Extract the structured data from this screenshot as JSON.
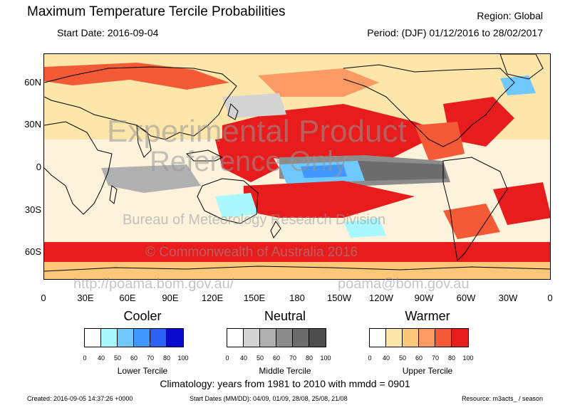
{
  "header": {
    "title": "Maximum Temperature Tercile Probabilities",
    "region": "Region: Global",
    "start_date": "Start Date: 2016-09-04",
    "period": "Period: (DJF) 01/12/2016 to 28/02/2017"
  },
  "axes": {
    "lat_labels": [
      "60N",
      "30N",
      "0",
      "30S",
      "60S"
    ],
    "lon_labels": [
      "0",
      "30E",
      "60E",
      "90E",
      "120E",
      "150E",
      "180",
      "150W",
      "120W",
      "90W",
      "60W",
      "30W",
      "0"
    ]
  },
  "watermarks": {
    "experimental": "Experimental Product",
    "reference": "Reference Only",
    "bureau": "Bureau of Meteorology Research Division",
    "copyright": "© Commonwealth of Australia 2016",
    "url": "http://poama.bom.gov.au/",
    "email": "poama@bom.gov.au"
  },
  "legend": {
    "groups": [
      {
        "title": "Cooler",
        "subtitle": "Lower Tercile",
        "colors": [
          "#ffffff",
          "#aaf8ff",
          "#6fc9ff",
          "#3f97ff",
          "#2a62f5",
          "#0a0acc"
        ]
      },
      {
        "title": "Neutral",
        "subtitle": "Middle Tercile",
        "colors": [
          "#ffffff",
          "#d3d3d3",
          "#b0b0b0",
          "#8c8c8c",
          "#6c6c6c",
          "#4d4d4d"
        ]
      },
      {
        "title": "Warmer",
        "subtitle": "Upper Tercile",
        "colors": [
          "#ffffff",
          "#fde6aa",
          "#fdc77a",
          "#fb9a63",
          "#f45a36",
          "#e81c1c"
        ]
      }
    ],
    "ticks": [
      "0",
      "40",
      "50",
      "60",
      "70",
      "80",
      "100"
    ],
    "palette": {
      "land": "#000000",
      "ocean_white": "#ffffff",
      "c40": "#aaf8ff",
      "c50": "#6fc9ff",
      "c60": "#3f97ff",
      "n40": "#d3d3d3",
      "n50": "#b0b0b0",
      "n60": "#8c8c8c",
      "n70": "#6c6c6c",
      "w40": "#fde6aa",
      "w50": "#fdc77a",
      "w60": "#fb9a63",
      "w70": "#f45a36",
      "w80": "#e81c1c",
      "w100": "#cc1020"
    }
  },
  "footer": {
    "climatology": "Climatology: years from 1981 to 2010 with mmdd = 0901",
    "created": "Created: 2016-09-05 14:37:26 +0000",
    "start_dates": "Start Dates (MM/DD): 04/09, 01/09, 28/08, 25/08, 21/08",
    "resource": "Resource: m3acts_ / season"
  }
}
